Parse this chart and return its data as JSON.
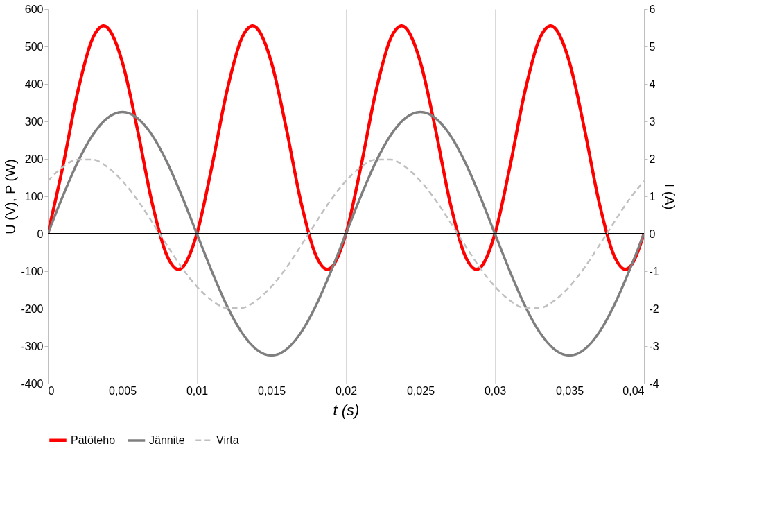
{
  "chart_data": {
    "type": "line",
    "xlabel": "t (s)",
    "ylabel": "U (V), P (W)",
    "y2label": "I (A)",
    "x": [
      0,
      0.001,
      0.002,
      0.003,
      0.004,
      0.005,
      0.006,
      0.007,
      0.008,
      0.009,
      0.01,
      0.011,
      0.012,
      0.013,
      0.014,
      0.015,
      0.016,
      0.017,
      0.018,
      0.019,
      0.02,
      0.021,
      0.022,
      0.023,
      0.024,
      0.025,
      0.026,
      0.027,
      0.028,
      0.029,
      0.03,
      0.031,
      0.032,
      0.033,
      0.034,
      0.035,
      0.036,
      0.037,
      0.038,
      0.039,
      0.04
    ],
    "series": [
      {
        "name": "Pätöteho",
        "color": "#ff0000",
        "line_style": "solid",
        "x": [
          0,
          0.001,
          0.002,
          0.003,
          0.00375,
          0.004,
          0.005,
          0.006,
          0.007,
          0.008,
          0.00875,
          0.009,
          0.01,
          0.011,
          0.012,
          0.013,
          0.01375,
          0.014,
          0.015,
          0.016,
          0.017,
          0.018,
          0.01875,
          0.019,
          0.02,
          0.021,
          0.022,
          0.023,
          0.02375,
          0.024,
          0.025,
          0.026,
          0.027,
          0.028,
          0.02875,
          0.029,
          0.03,
          0.031,
          0.032,
          0.033,
          0.03375,
          0.034,
          0.035,
          0.036,
          0.037,
          0.038,
          0.03875,
          0.039,
          0.04
        ],
        "values": [
          0,
          178,
          378,
          521,
          555,
          550,
          458,
          281,
          82,
          -59,
          -95,
          -91,
          0,
          178,
          378,
          521,
          555,
          550,
          458,
          281,
          82,
          -59,
          -95,
          -91,
          0,
          178,
          378,
          521,
          555,
          550,
          458,
          281,
          82,
          -59,
          -95,
          -91,
          0,
          178,
          378,
          521,
          555,
          550,
          458,
          281,
          82,
          -59,
          -95,
          -91,
          0
        ]
      },
      {
        "name": "Jännite",
        "color": "#7f7f7f",
        "line_style": "solid",
        "values": [
          0,
          100,
          191,
          263,
          309,
          325,
          309,
          263,
          191,
          100,
          0,
          -100,
          -191,
          -263,
          -309,
          -325,
          -309,
          -263,
          -191,
          -100,
          0,
          100,
          191,
          263,
          309,
          325,
          309,
          263,
          191,
          100,
          0,
          -100,
          -191,
          -263,
          -309,
          -325,
          -309,
          -263,
          -191,
          -100,
          0
        ]
      },
      {
        "name": "Virta",
        "color": "#c0c0c0",
        "line_style": "dashed",
        "axis": "y2",
        "values": [
          1.41,
          1.78,
          1.98,
          1.98,
          1.78,
          1.41,
          0.91,
          0.31,
          -0.31,
          -0.91,
          -1.41,
          -1.78,
          -1.98,
          -1.98,
          -1.78,
          -1.41,
          -0.91,
          -0.31,
          0.31,
          0.91,
          1.41,
          1.78,
          1.98,
          1.98,
          1.78,
          1.41,
          0.91,
          0.31,
          -0.31,
          -0.91,
          -1.41,
          -1.78,
          -1.98,
          -1.98,
          -1.78,
          -1.41,
          -0.91,
          -0.31,
          0.31,
          0.91,
          1.41
        ]
      }
    ],
    "xlim": [
      0,
      0.04
    ],
    "xticks": [
      0,
      {
        "value": 0.005,
        "label": "0,005"
      },
      {
        "value": 0.01,
        "label": "0,01"
      },
      {
        "value": 0.015,
        "label": "0,015"
      },
      {
        "value": 0.02,
        "label": "0,02"
      },
      {
        "value": 0.025,
        "label": "0,025"
      },
      {
        "value": 0.03,
        "label": "0,03"
      },
      {
        "value": 0.035,
        "label": "0,035"
      },
      {
        "value": 0.04,
        "label": "0,04"
      }
    ],
    "ylim": [
      -400,
      600
    ],
    "yticks": [
      -400,
      -300,
      -200,
      -100,
      0,
      100,
      200,
      300,
      400,
      500,
      600
    ],
    "y2lim": [
      -4,
      6
    ],
    "y2ticks": [
      -4,
      -3,
      -2,
      -1,
      0,
      1,
      2,
      3,
      4,
      5,
      6
    ],
    "ref_lines": [
      {
        "axis": "y",
        "value": 0,
        "color": "#000000"
      }
    ],
    "grid": "x",
    "legend": "bottom",
    "marker": "none"
  }
}
